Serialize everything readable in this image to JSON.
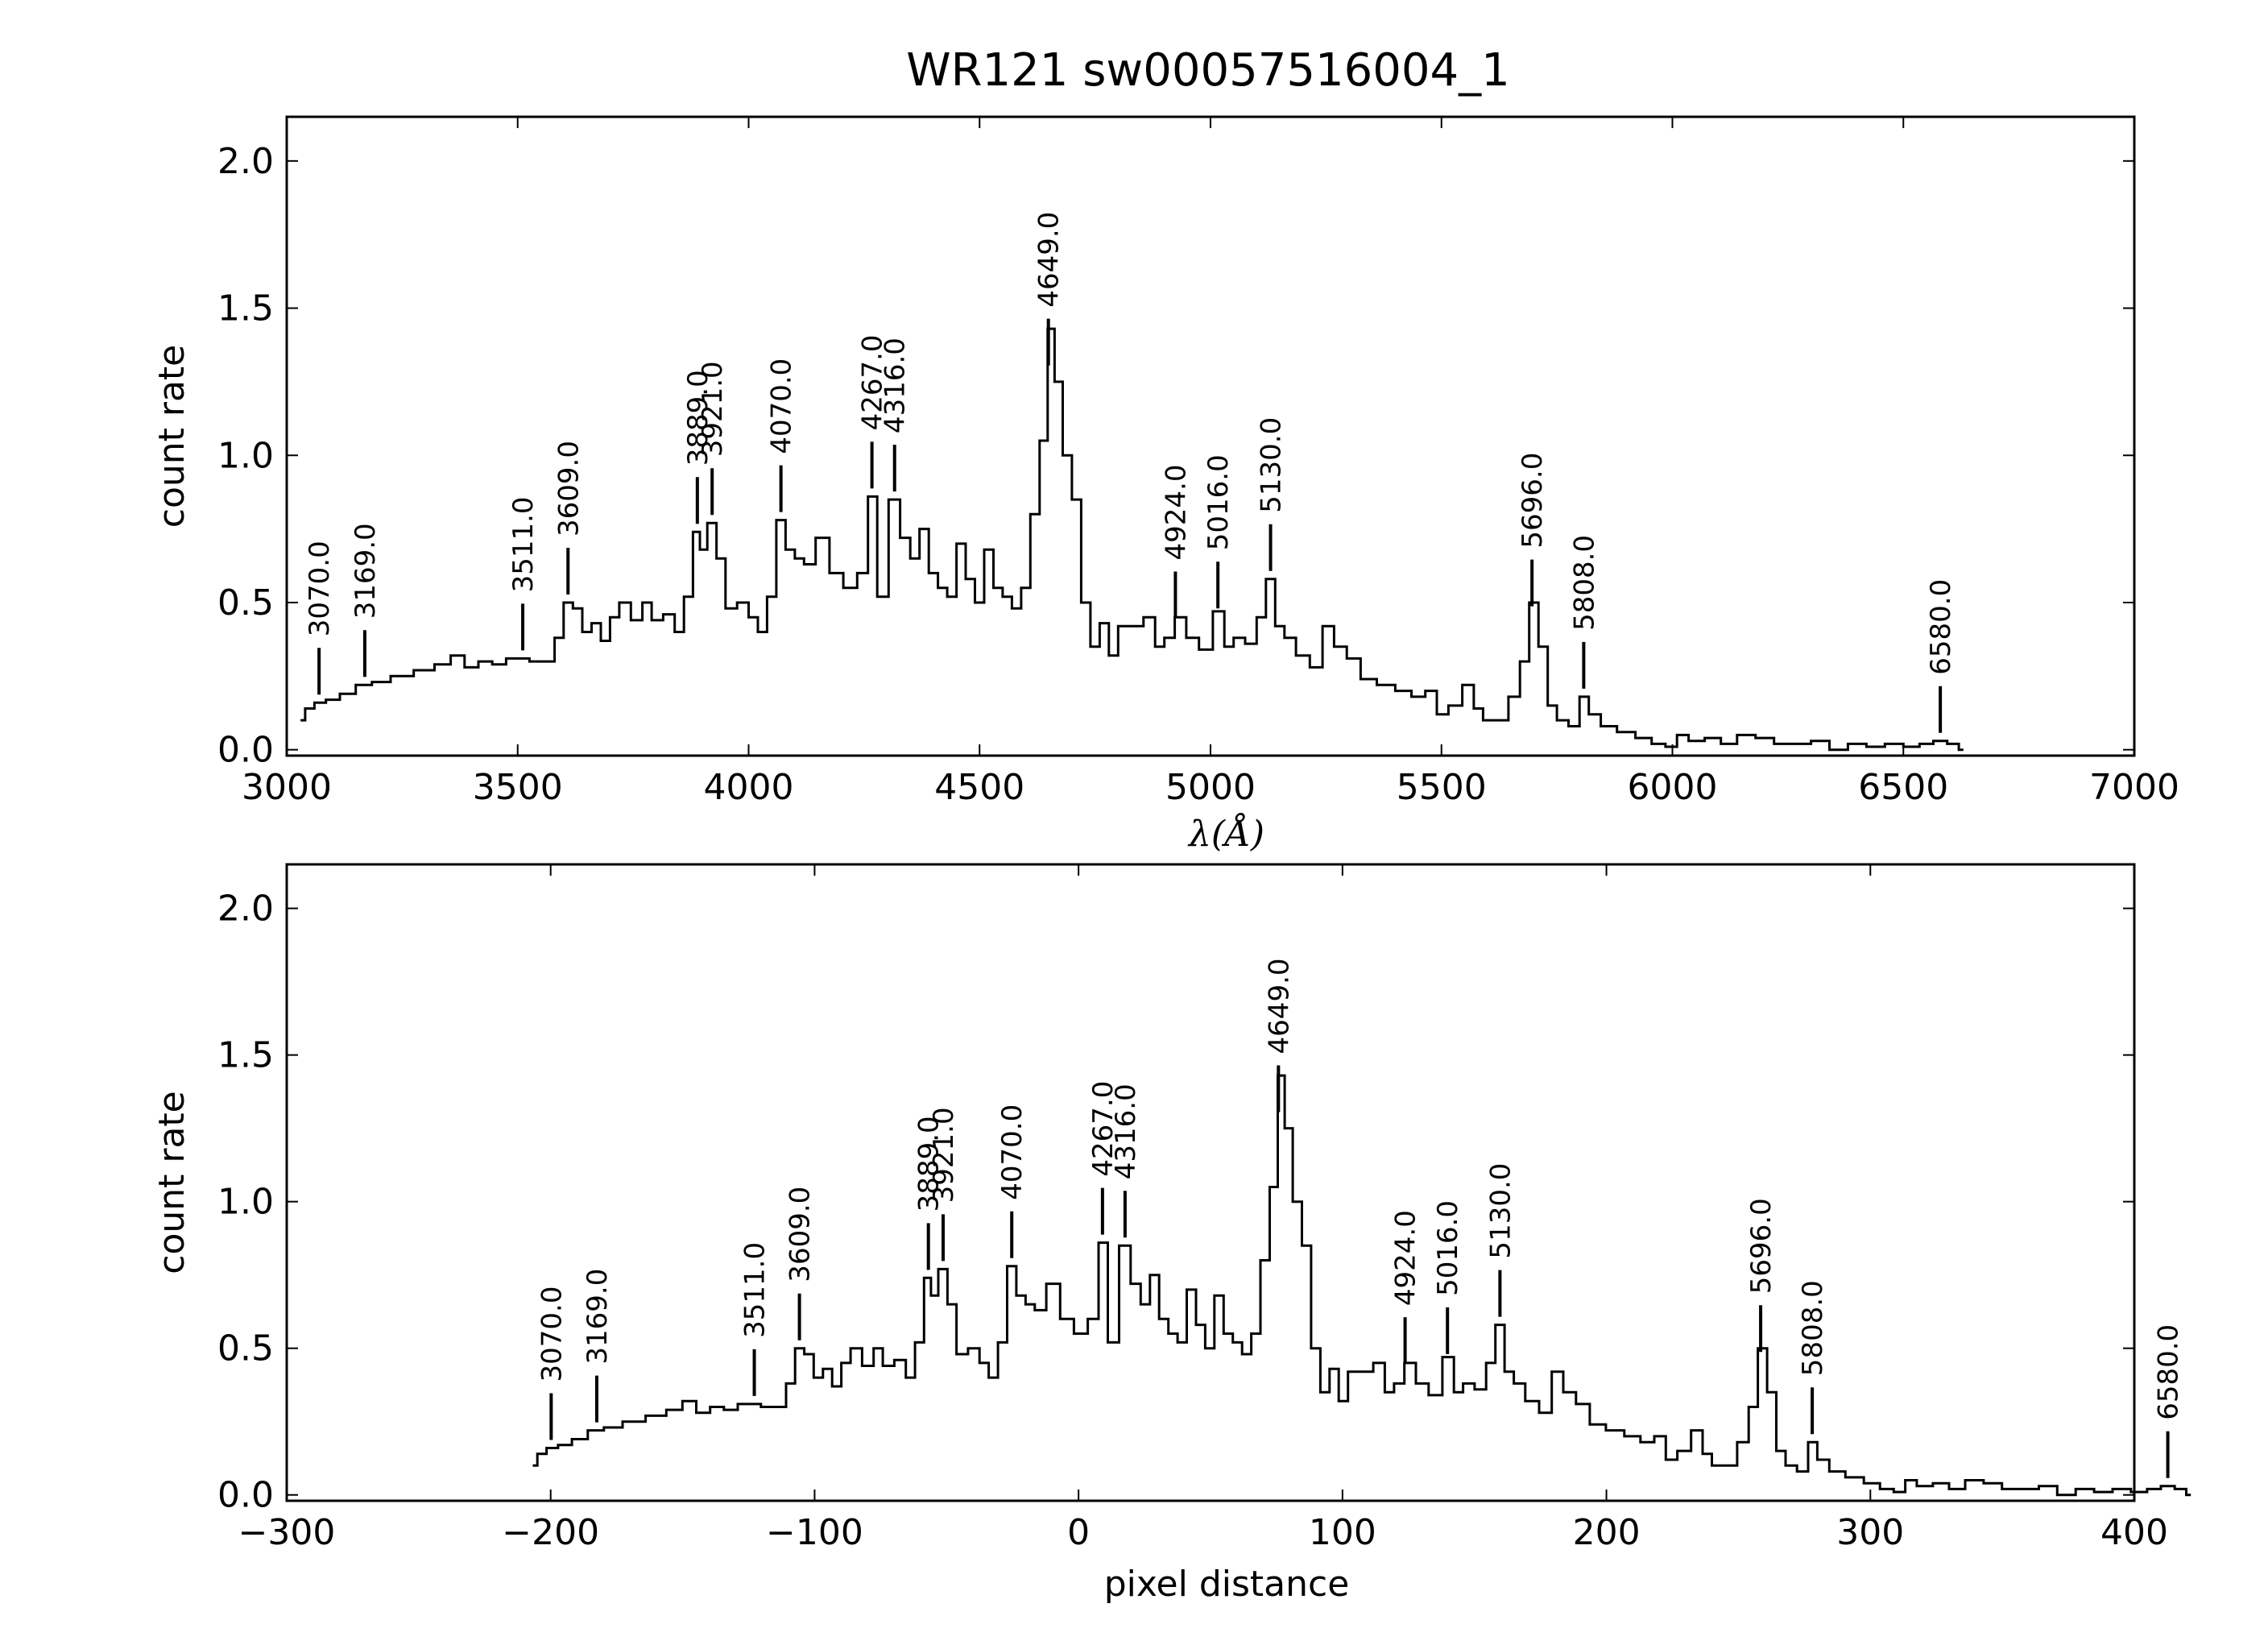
{
  "chart_data": {
    "title": "WR121  sw00057516004_1",
    "line_ids": [
      3070.0,
      3169.0,
      3511.0,
      3609.0,
      3889.0,
      3921.0,
      4070.0,
      4267.0,
      4316.0,
      4649.0,
      4924.0,
      5016.0,
      5130.0,
      5696.0,
      5808.0,
      6580.0
    ],
    "spectrum_wavelength": [
      [
        3030,
        0.1
      ],
      [
        3050,
        0.14
      ],
      [
        3070,
        0.16
      ],
      [
        3100,
        0.17
      ],
      [
        3130,
        0.19
      ],
      [
        3169,
        0.22
      ],
      [
        3200,
        0.23
      ],
      [
        3250,
        0.25
      ],
      [
        3300,
        0.27
      ],
      [
        3340,
        0.29
      ],
      [
        3370,
        0.32
      ],
      [
        3400,
        0.28
      ],
      [
        3430,
        0.3
      ],
      [
        3460,
        0.29
      ],
      [
        3490,
        0.31
      ],
      [
        3511,
        0.31
      ],
      [
        3540,
        0.3
      ],
      [
        3570,
        0.3
      ],
      [
        3590,
        0.38
      ],
      [
        3609,
        0.5
      ],
      [
        3630,
        0.48
      ],
      [
        3650,
        0.4
      ],
      [
        3670,
        0.43
      ],
      [
        3690,
        0.37
      ],
      [
        3710,
        0.45
      ],
      [
        3730,
        0.5
      ],
      [
        3760,
        0.44
      ],
      [
        3780,
        0.5
      ],
      [
        3800,
        0.44
      ],
      [
        3830,
        0.46
      ],
      [
        3850,
        0.4
      ],
      [
        3870,
        0.52
      ],
      [
        3889,
        0.74
      ],
      [
        3900,
        0.68
      ],
      [
        3921,
        0.77
      ],
      [
        3940,
        0.65
      ],
      [
        3960,
        0.48
      ],
      [
        3990,
        0.5
      ],
      [
        4010,
        0.45
      ],
      [
        4030,
        0.4
      ],
      [
        4050,
        0.52
      ],
      [
        4070,
        0.78
      ],
      [
        4090,
        0.68
      ],
      [
        4110,
        0.65
      ],
      [
        4130,
        0.63
      ],
      [
        4160,
        0.72
      ],
      [
        4190,
        0.6
      ],
      [
        4220,
        0.55
      ],
      [
        4250,
        0.6
      ],
      [
        4267,
        0.86
      ],
      [
        4290,
        0.52
      ],
      [
        4316,
        0.85
      ],
      [
        4340,
        0.72
      ],
      [
        4360,
        0.65
      ],
      [
        4380,
        0.75
      ],
      [
        4400,
        0.6
      ],
      [
        4420,
        0.55
      ],
      [
        4440,
        0.52
      ],
      [
        4460,
        0.7
      ],
      [
        4480,
        0.58
      ],
      [
        4500,
        0.5
      ],
      [
        4520,
        0.68
      ],
      [
        4540,
        0.55
      ],
      [
        4560,
        0.52
      ],
      [
        4580,
        0.48
      ],
      [
        4600,
        0.55
      ],
      [
        4620,
        0.8
      ],
      [
        4640,
        1.05
      ],
      [
        4655,
        1.43
      ],
      [
        4670,
        1.25
      ],
      [
        4690,
        1.0
      ],
      [
        4710,
        0.85
      ],
      [
        4730,
        0.5
      ],
      [
        4750,
        0.35
      ],
      [
        4770,
        0.43
      ],
      [
        4790,
        0.32
      ],
      [
        4810,
        0.42
      ],
      [
        4840,
        0.42
      ],
      [
        4870,
        0.45
      ],
      [
        4890,
        0.35
      ],
      [
        4910,
        0.38
      ],
      [
        4935,
        0.45
      ],
      [
        4960,
        0.38
      ],
      [
        4990,
        0.34
      ],
      [
        5020,
        0.47
      ],
      [
        5040,
        0.35
      ],
      [
        5060,
        0.38
      ],
      [
        5090,
        0.36
      ],
      [
        5110,
        0.45
      ],
      [
        5130,
        0.58
      ],
      [
        5150,
        0.42
      ],
      [
        5170,
        0.38
      ],
      [
        5200,
        0.32
      ],
      [
        5230,
        0.28
      ],
      [
        5255,
        0.42
      ],
      [
        5280,
        0.35
      ],
      [
        5310,
        0.31
      ],
      [
        5340,
        0.24
      ],
      [
        5380,
        0.22
      ],
      [
        5420,
        0.2
      ],
      [
        5450,
        0.18
      ],
      [
        5480,
        0.2
      ],
      [
        5500,
        0.12
      ],
      [
        5530,
        0.15
      ],
      [
        5560,
        0.22
      ],
      [
        5580,
        0.14
      ],
      [
        5600,
        0.1
      ],
      [
        5630,
        0.1
      ],
      [
        5660,
        0.18
      ],
      [
        5680,
        0.3
      ],
      [
        5700,
        0.5
      ],
      [
        5720,
        0.35
      ],
      [
        5740,
        0.15
      ],
      [
        5760,
        0.1
      ],
      [
        5790,
        0.08
      ],
      [
        5808,
        0.18
      ],
      [
        5830,
        0.12
      ],
      [
        5860,
        0.08
      ],
      [
        5900,
        0.06
      ],
      [
        5940,
        0.04
      ],
      [
        5970,
        0.02
      ],
      [
        6000,
        0.01
      ],
      [
        6020,
        0.05
      ],
      [
        6050,
        0.03
      ],
      [
        6090,
        0.04
      ],
      [
        6120,
        0.02
      ],
      [
        6160,
        0.05
      ],
      [
        6200,
        0.04
      ],
      [
        6240,
        0.02
      ],
      [
        6280,
        0.02
      ],
      [
        6320,
        0.03
      ],
      [
        6360,
        0.0
      ],
      [
        6400,
        0.02
      ],
      [
        6440,
        0.01
      ],
      [
        6480,
        0.02
      ],
      [
        6520,
        0.01
      ],
      [
        6550,
        0.02
      ],
      [
        6580,
        0.03
      ],
      [
        6610,
        0.02
      ],
      [
        6630,
        0.0
      ]
    ],
    "panels": [
      {
        "type": "line",
        "xlabel": "λ(Å)",
        "ylabel": "count rate",
        "xlim": [
          3000,
          7000
        ],
        "ylim": [
          -0.02,
          2.15
        ],
        "xticks": [
          3000,
          3500,
          4000,
          4500,
          5000,
          5500,
          6000,
          6500,
          7000
        ],
        "xtick_labels": [
          "3000",
          "3500",
          "4000",
          "4500",
          "5000",
          "5500",
          "6000",
          "6500",
          "7000"
        ],
        "yticks": [
          0.0,
          0.5,
          1.0,
          1.5,
          2.0
        ],
        "ytick_labels": [
          "0.0",
          "0.5",
          "1.0",
          "1.5",
          "2.0"
        ],
        "x_mode": "wavelength",
        "annotation_labels": [
          "3070.0",
          "3169.0",
          "3511.0",
          "3609.0",
          "3889.0",
          "3921.0",
          "4070.0",
          "4267.0",
          "4316.0",
          "4649.0",
          "4924.0",
          "5016.0",
          "5130.0",
          "5696.0",
          "5808.0",
          "6580.0"
        ]
      },
      {
        "type": "line",
        "xlabel": "pixel distance",
        "ylabel": "count rate",
        "xlim": [
          -300,
          400
        ],
        "ylim": [
          -0.02,
          2.15
        ],
        "xticks": [
          -300,
          -200,
          -100,
          0,
          100,
          200,
          300,
          400
        ],
        "xtick_labels": [
          "−300",
          "−200",
          "−100",
          "0",
          "100",
          "200",
          "300",
          "400"
        ],
        "yticks": [
          0.0,
          0.5,
          1.0,
          1.5,
          2.0
        ],
        "ytick_labels": [
          "0.0",
          "0.5",
          "1.0",
          "1.5",
          "2.0"
        ],
        "x_mode": "pixel",
        "annotation_labels": [
          "3070.0",
          "3169.0",
          "3511.0",
          "3609.0",
          "3889.0",
          "3921.0",
          "4070.0",
          "4267.0",
          "4316.0",
          "4649.0",
          "4924.0",
          "5016.0",
          "5130.0",
          "5696.0",
          "5808.0",
          "6580.0"
        ]
      }
    ]
  }
}
